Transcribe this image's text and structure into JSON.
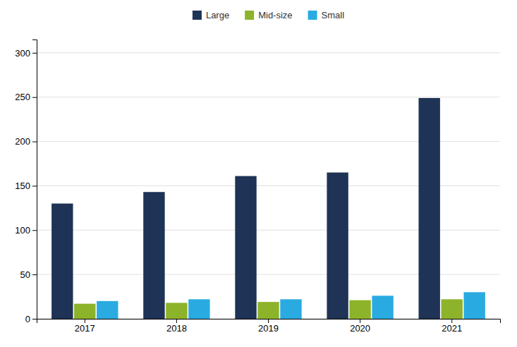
{
  "chart_data": {
    "type": "bar",
    "categories": [
      "2017",
      "2018",
      "2019",
      "2020",
      "2021"
    ],
    "series": [
      {
        "name": "Large",
        "color": "#1e3355",
        "values": [
          130,
          143,
          161,
          165,
          249
        ]
      },
      {
        "name": "Mid-size",
        "color": "#8db32a",
        "values": [
          17,
          18,
          19,
          21,
          22
        ]
      },
      {
        "name": "Small",
        "color": "#29abe2",
        "values": [
          20,
          22,
          22,
          26,
          30
        ]
      }
    ],
    "ylim": [
      0,
      315
    ],
    "yticks": [
      0,
      50,
      100,
      150,
      200,
      250,
      300
    ],
    "grid": true,
    "legend": "top"
  }
}
